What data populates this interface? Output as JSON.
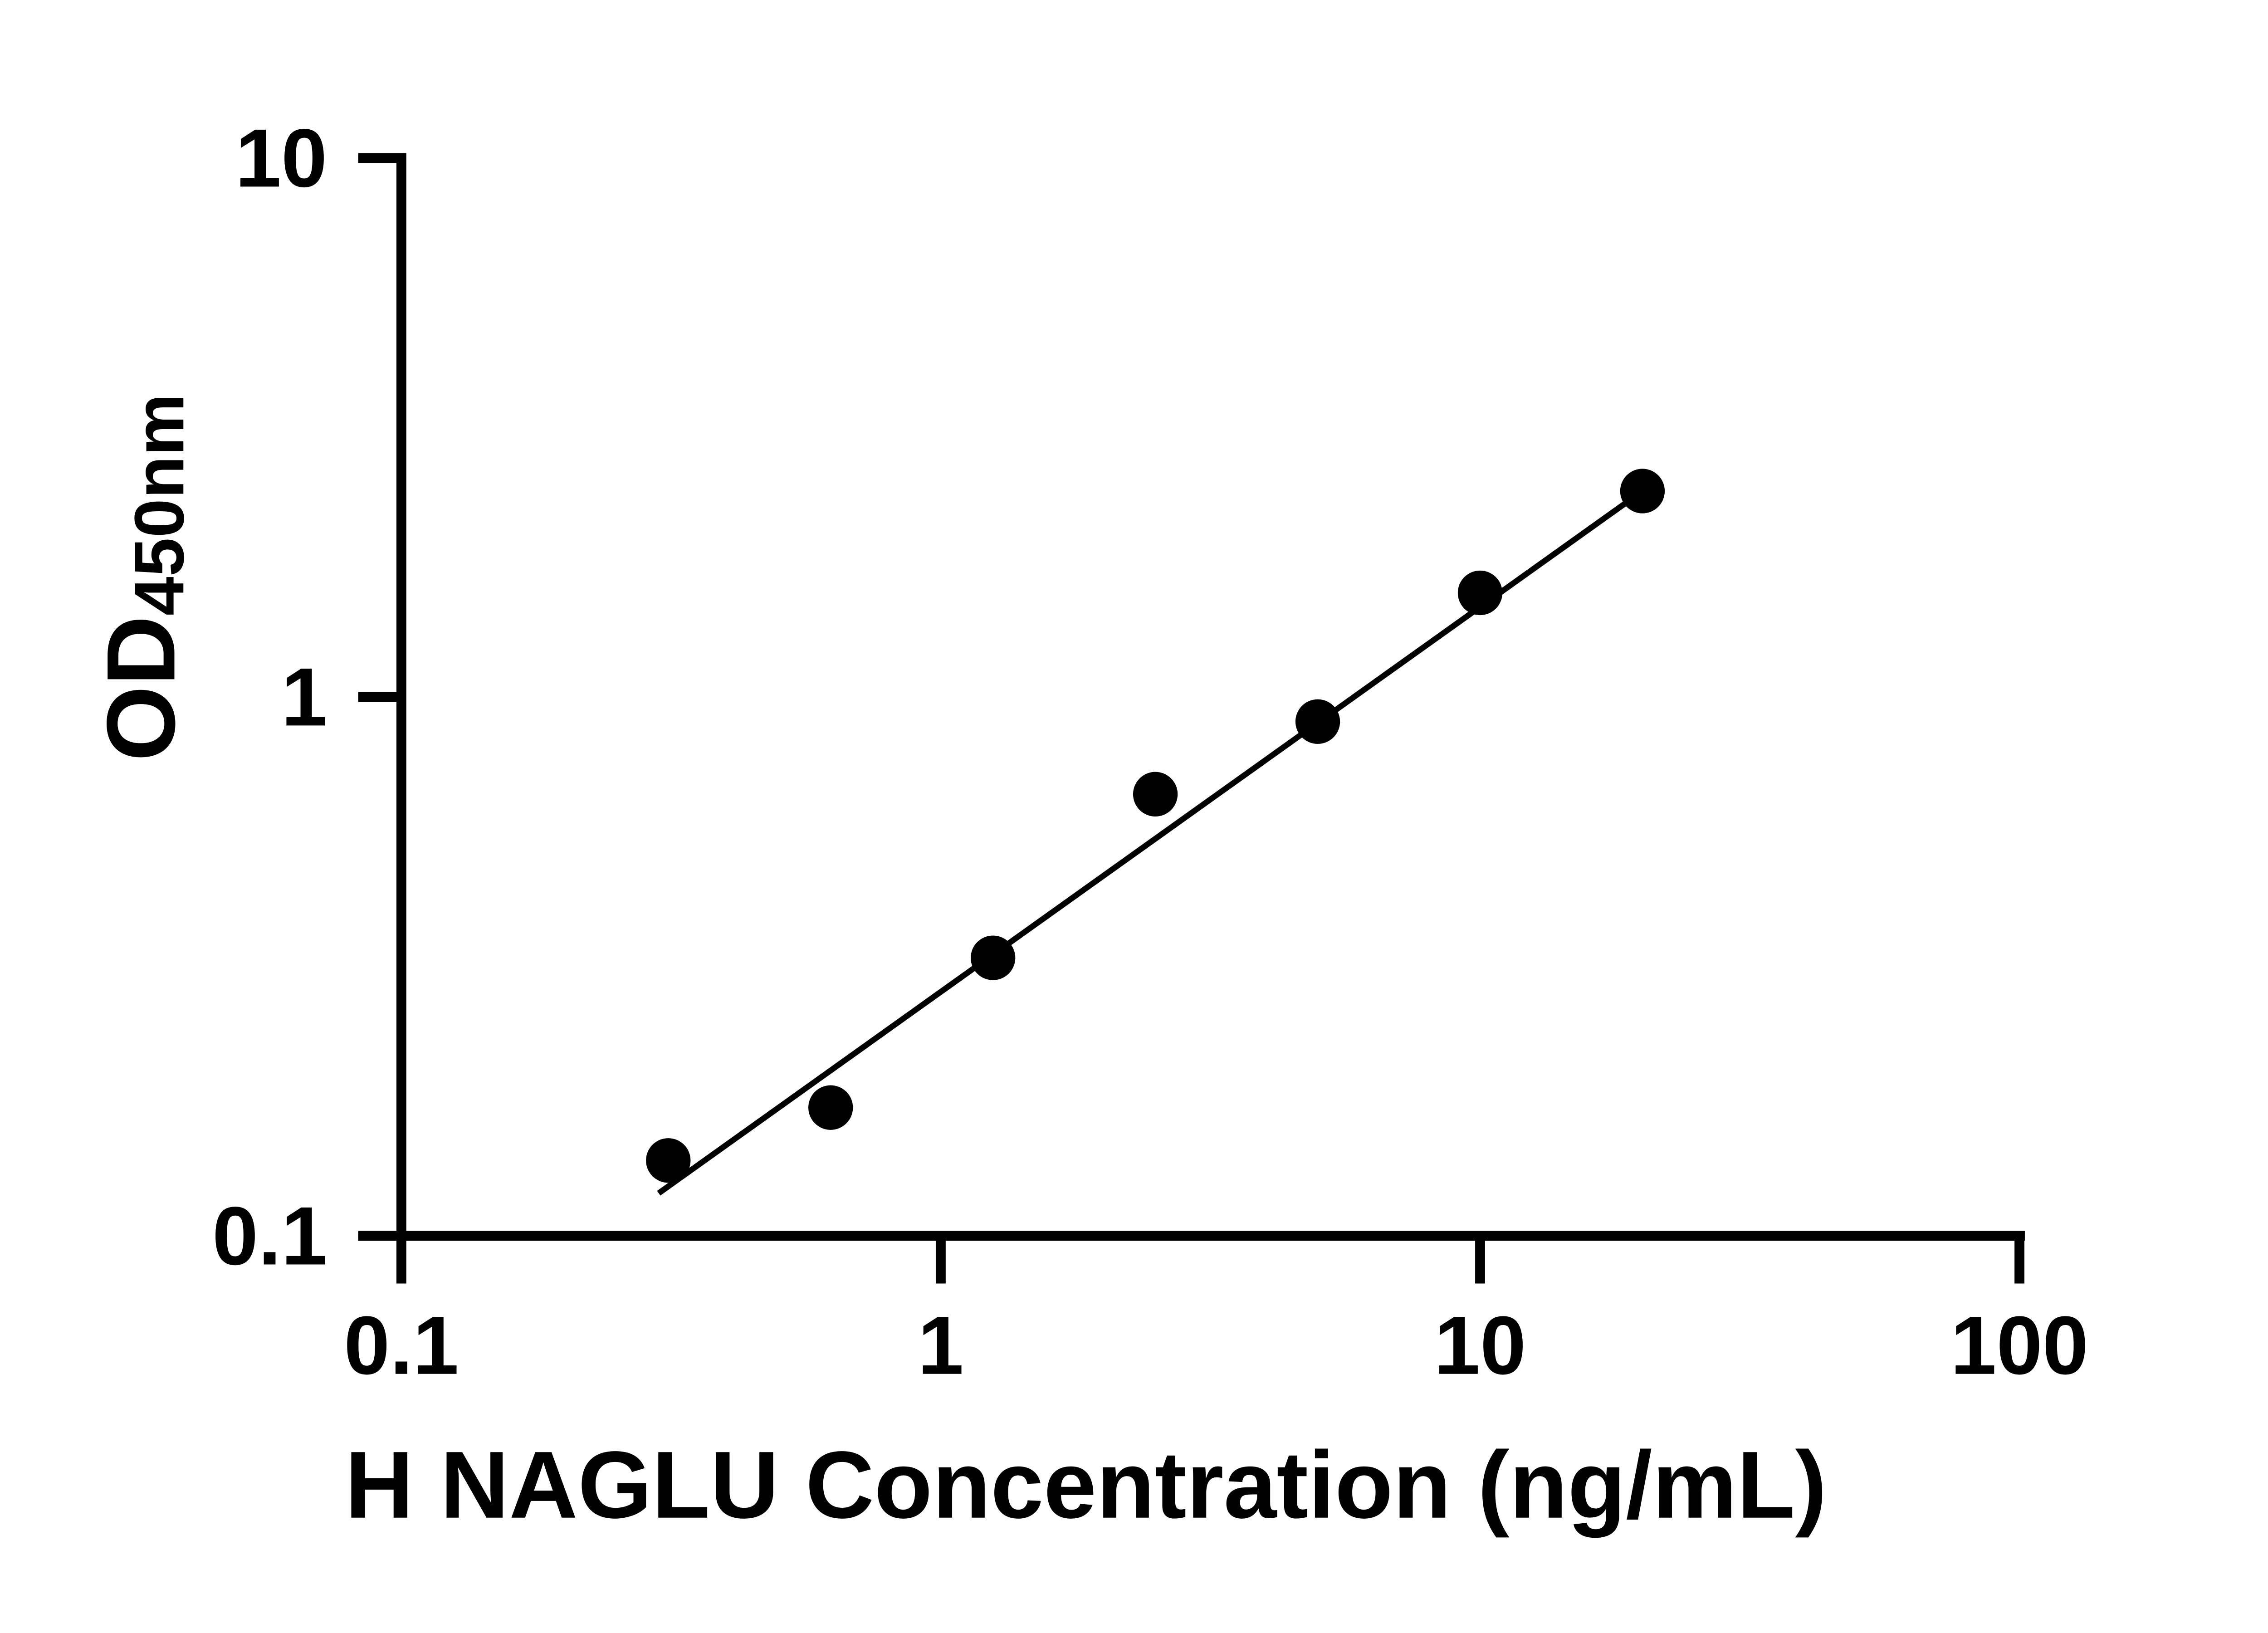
{
  "chart_data": {
    "type": "scatter",
    "title": "",
    "xlabel": "H NAGLU Concentration (ng/mL)",
    "ylabel_main": "OD",
    "ylabel_sub": "450nm",
    "x_scale": "log",
    "y_scale": "log",
    "xlim": [
      0.1,
      100
    ],
    "ylim": [
      0.1,
      10
    ],
    "x_ticks": [
      0.1,
      1,
      10,
      100
    ],
    "x_tick_labels": [
      "0.1",
      "1",
      "10",
      "100"
    ],
    "y_ticks": [
      0.1,
      1,
      10
    ],
    "y_tick_labels": [
      "0.1",
      "1",
      "10"
    ],
    "grid": false,
    "legend": false,
    "axis_color": "#000000",
    "marker_color": "#000000",
    "line_color": "#000000",
    "series": [
      {
        "name": "standard-curve-points",
        "kind": "scatter",
        "x": [
          0.3125,
          0.625,
          1.25,
          2.5,
          5,
          10,
          20
        ],
        "y": [
          0.138,
          0.173,
          0.328,
          0.66,
          0.9,
          1.56,
          2.41
        ]
      },
      {
        "name": "fit-line",
        "kind": "line",
        "x": [
          0.3,
          20
        ],
        "y": [
          0.12,
          2.41
        ]
      }
    ]
  }
}
